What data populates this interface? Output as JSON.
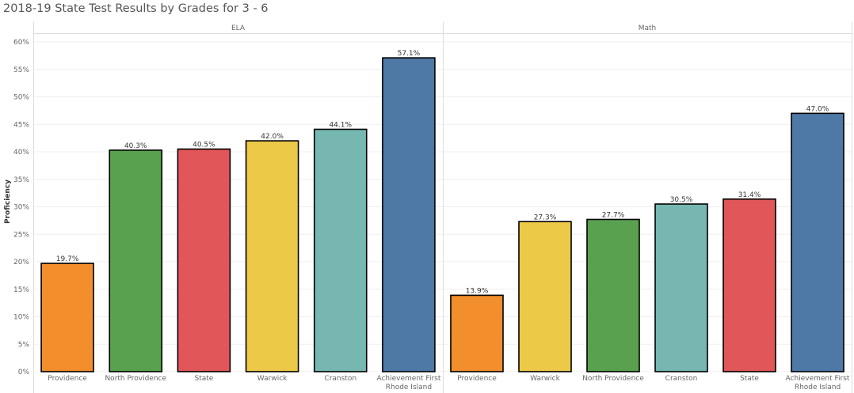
{
  "title": "2018-19 State Test Results by  Grades for  3 - 6",
  "colors": {
    "orange": "#F28E2B",
    "green": "#59A14F",
    "red": "#E15759",
    "yellow": "#EDC948",
    "teal": "#76B7B2",
    "blue": "#4E79A7",
    "gridline": "#EFEFEF",
    "divider": "#DDDDDD",
    "bar_outline": "#000000"
  },
  "chart_data": [
    {
      "type": "bar",
      "panel": "ELA",
      "ylabel": "Proficiency",
      "ylim": [
        0,
        60
      ],
      "y_ticks": [
        "0%",
        "5%",
        "10%",
        "15%",
        "20%",
        "25%",
        "30%",
        "35%",
        "40%",
        "45%",
        "50%",
        "55%",
        "60%"
      ],
      "grid": true,
      "categories": [
        "Providence",
        "North Providence",
        "State",
        "Warwick",
        "Cranston",
        "Achievement First Rhode Island"
      ],
      "values": [
        19.7,
        40.3,
        40.5,
        42.0,
        44.1,
        57.1
      ],
      "labels": [
        "19.7%",
        "40.3%",
        "40.5%",
        "42.0%",
        "44.1%",
        "57.1%"
      ],
      "bar_colors": [
        "orange",
        "green",
        "red",
        "yellow",
        "teal",
        "blue"
      ]
    },
    {
      "type": "bar",
      "panel": "Math",
      "ylabel": "Proficiency",
      "ylim": [
        0,
        60
      ],
      "grid": true,
      "categories": [
        "Providence",
        "Warwick",
        "North Providence",
        "Cranston",
        "State",
        "Achievement First Rhode Island"
      ],
      "values": [
        13.9,
        27.3,
        27.7,
        30.5,
        31.4,
        47.0
      ],
      "labels": [
        "13.9%",
        "27.3%",
        "27.7%",
        "30.5%",
        "31.4%",
        "47.0%"
      ],
      "bar_colors": [
        "orange",
        "yellow",
        "green",
        "teal",
        "red",
        "blue"
      ]
    }
  ]
}
